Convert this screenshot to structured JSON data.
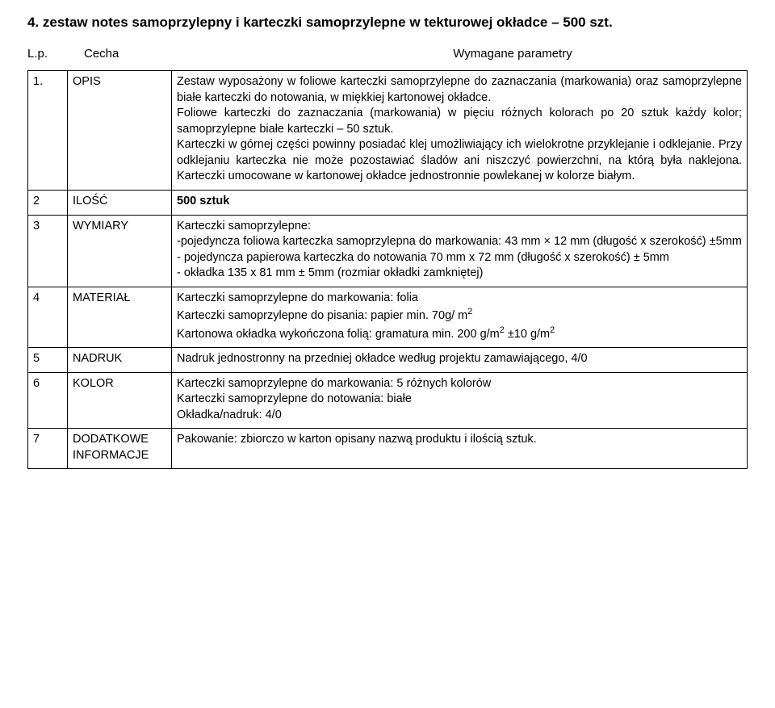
{
  "title": "4. zestaw notes samoprzylepny i karteczki samoprzylepne w tekturowej okładce – 500 szt.",
  "head": {
    "lp": "L.p.",
    "cecha": "Cecha",
    "wym": "Wymagane parametry"
  },
  "rows": {
    "r1": {
      "n": "1.",
      "k": "OPIS",
      "p1": "Zestaw wyposażony w foliowe karteczki samoprzylepne do zaznaczania (markowania) oraz samoprzylepne białe karteczki do notowania, w miękkiej kartonowej okładce.",
      "p2": "Foliowe karteczki do zaznaczania (markowania) w pięciu różnych kolorach po 20 sztuk każdy kolor; samoprzylepne białe karteczki – 50 sztuk.",
      "p3": "Karteczki w górnej części powinny posiadać klej umożliwiający ich wielokrotne przyklejanie i odklejanie. Przy odklejaniu karteczka nie może pozostawiać śladów ani niszczyć powierzchni, na którą była naklejona. Karteczki umocowane w kartonowej okładce jednostronnie powlekanej w kolorze białym."
    },
    "r2": {
      "n": "2",
      "k": "ILOŚĆ",
      "v": "500 sztuk"
    },
    "r3": {
      "n": "3",
      "k": "WYMIARY",
      "l1": "Karteczki samoprzylepne:",
      "l2": "-pojedyncza foliowa karteczka samoprzylepna do markowania: 43 mm × 12 mm (długość x szerokość) ±5mm",
      "l3": "- pojedyncza papierowa karteczka do notowania 70 mm x 72 mm (długość x szerokość) ± 5mm",
      "l4": "- okładka 135 x 81 mm ± 5mm (rozmiar okładki zamkniętej)"
    },
    "r4": {
      "n": "4",
      "k": "MATERIAŁ",
      "l1": "Karteczki samoprzylepne do markowania: folia",
      "l2a": "Karteczki samoprzylepne do pisania: papier min. 70g/ m",
      "l3a": "Kartonowa okładka wykończona folią: gramatura min. 200 g/m",
      "l3b": " ±10 g/m",
      "sup2": "2"
    },
    "r5": {
      "n": "5",
      "k": "NADRUK",
      "v": "Nadruk jednostronny na przedniej okładce według projektu zamawiającego, 4/0"
    },
    "r6": {
      "n": "6",
      "k": "KOLOR",
      "l1": "Karteczki samoprzylepne do markowania: 5 różnych kolorów",
      "l2": "Karteczki samoprzylepne do notowania: białe",
      "l3": "Okładka/nadruk: 4/0"
    },
    "r7": {
      "n": "7",
      "k1": "DODATKOWE",
      "k2": "INFORMACJE",
      "v": "Pakowanie: zbiorczo w karton opisany nazwą produktu i ilością sztuk."
    }
  }
}
